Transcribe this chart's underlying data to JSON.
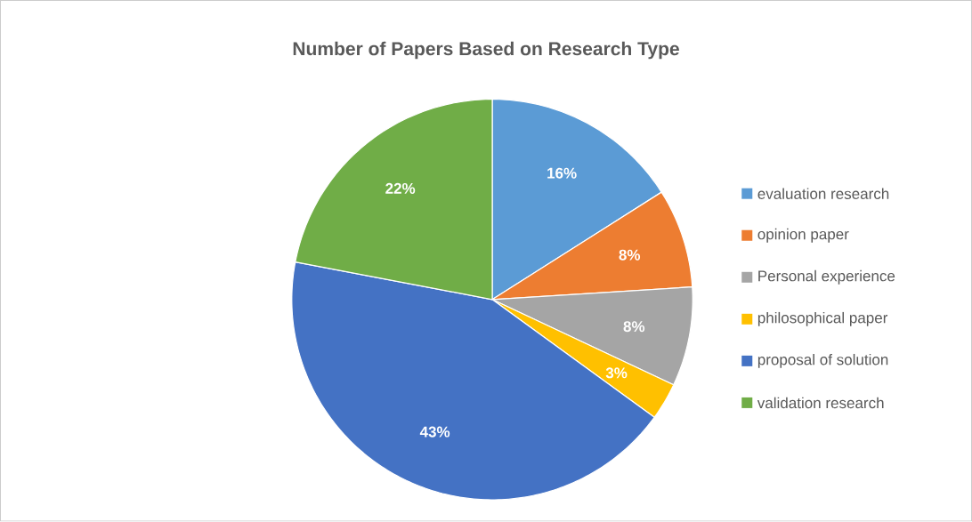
{
  "chart_data": {
    "type": "pie",
    "title": "Number of Papers Based on Research Type",
    "categories": [
      "evaluation research",
      "opinion paper",
      "Personal experience",
      "philosophical paper",
      "proposal of solution",
      "validation research"
    ],
    "values": [
      16,
      8,
      8,
      3,
      43,
      22
    ],
    "colors": [
      "#5b9bd5",
      "#ed7d31",
      "#a5a5a5",
      "#ffc000",
      "#4472c4",
      "#70ad47"
    ],
    "value_labels": [
      "16%",
      "8%",
      "8%",
      "3%",
      "43%",
      "22%"
    ],
    "legend": "right"
  }
}
